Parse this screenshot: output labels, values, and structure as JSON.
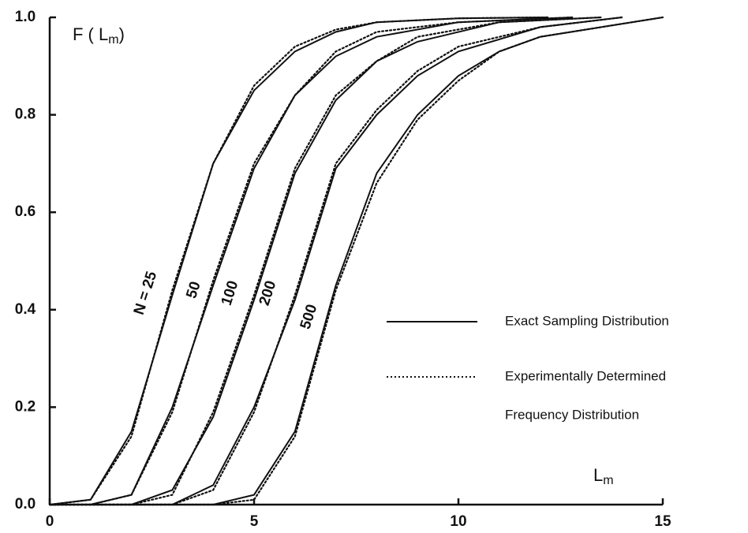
{
  "chart_data": {
    "type": "line",
    "y_label": [
      "F ( L",
      "m",
      ")"
    ],
    "x_label": [
      "L",
      "m"
    ],
    "xlim": [
      0,
      15
    ],
    "ylim": [
      0,
      1
    ],
    "xticks": [
      0,
      5,
      10,
      15
    ],
    "yticks": [
      {
        "value": 0,
        "label": "0.0"
      },
      0.2,
      0.4,
      0.6,
      0.8,
      {
        "value": 1,
        "label": "1.0"
      }
    ],
    "color": "#111111",
    "series": [
      {
        "name": "N = 25",
        "x": [
          0,
          1,
          2,
          3,
          4,
          5,
          6,
          7,
          8,
          10,
          12.2
        ],
        "values": [
          0,
          0.01,
          0.15,
          0.43,
          0.7,
          0.85,
          0.93,
          0.97,
          0.99,
          0.998,
          1
        ],
        "experimental": [
          0,
          0.01,
          0.14,
          0.44,
          0.7,
          0.86,
          0.94,
          0.975,
          0.99,
          0.998,
          1
        ]
      },
      {
        "name": "50",
        "x": [
          0,
          1,
          2,
          3,
          4,
          5,
          6,
          7,
          8,
          10,
          12.8
        ],
        "values": [
          0,
          0,
          0.02,
          0.2,
          0.45,
          0.69,
          0.84,
          0.92,
          0.96,
          0.99,
          1
        ],
        "experimental": [
          0,
          0,
          0.02,
          0.19,
          0.46,
          0.7,
          0.84,
          0.93,
          0.97,
          0.99,
          1
        ]
      },
      {
        "name": "100",
        "x": [
          0,
          2,
          3,
          4,
          5,
          6,
          7,
          8,
          9,
          11,
          13.5
        ],
        "values": [
          0,
          0,
          0.03,
          0.18,
          0.42,
          0.68,
          0.83,
          0.91,
          0.95,
          0.99,
          1
        ],
        "experimental": [
          0,
          0,
          0.02,
          0.19,
          0.43,
          0.69,
          0.84,
          0.91,
          0.96,
          0.99,
          1
        ]
      },
      {
        "name": "200",
        "x": [
          0,
          3,
          4,
          5,
          6,
          7,
          8,
          9,
          10,
          12,
          14
        ],
        "values": [
          0,
          0,
          0.04,
          0.2,
          0.42,
          0.69,
          0.8,
          0.88,
          0.93,
          0.98,
          1
        ],
        "experimental": [
          0,
          0,
          0.03,
          0.19,
          0.43,
          0.7,
          0.81,
          0.89,
          0.94,
          0.98,
          1
        ]
      },
      {
        "name": "500",
        "x": [
          0,
          4,
          5,
          6,
          7,
          8,
          9,
          10,
          11,
          12,
          15
        ],
        "values": [
          0,
          0,
          0.02,
          0.15,
          0.45,
          0.68,
          0.8,
          0.88,
          0.93,
          0.96,
          1
        ],
        "experimental": [
          0,
          0,
          0.01,
          0.14,
          0.44,
          0.66,
          0.79,
          0.87,
          0.93,
          0.96,
          1
        ]
      }
    ],
    "legend": [
      {
        "label": "Exact Sampling Distribution",
        "style": "solid"
      },
      {
        "label": [
          "Experimentally Determined",
          "Frequency Distribution"
        ],
        "style": "dotted"
      }
    ]
  }
}
